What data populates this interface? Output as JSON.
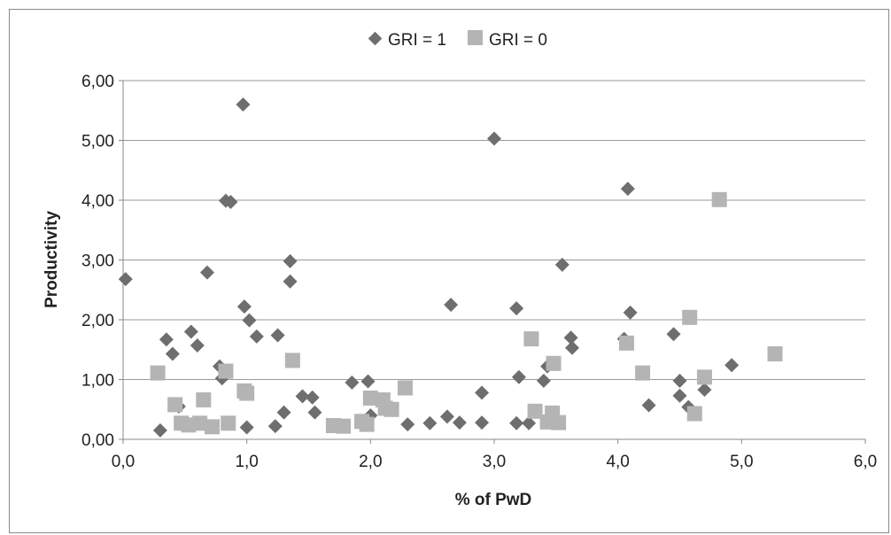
{
  "chart_data": {
    "type": "scatter",
    "title": "",
    "xlabel": "% of PwD",
    "ylabel": "Productivity",
    "xlim": [
      0,
      6
    ],
    "ylim": [
      0,
      6
    ],
    "x_ticks": [
      "0,0",
      "1,0",
      "2,0",
      "3,0",
      "4,0",
      "5,0",
      "6,0"
    ],
    "y_ticks": [
      "0,00",
      "1,00",
      "2,00",
      "3,00",
      "4,00",
      "5,00",
      "6,00"
    ],
    "grid": "horizontal",
    "legend_position": "top-center",
    "series": [
      {
        "name": "GRI = 1",
        "marker": "diamond",
        "color": "#6e6e6e",
        "points": [
          [
            0.02,
            2.68
          ],
          [
            0.3,
            0.15
          ],
          [
            0.35,
            1.67
          ],
          [
            0.4,
            1.43
          ],
          [
            0.45,
            0.55
          ],
          [
            0.55,
            1.8
          ],
          [
            0.6,
            1.57
          ],
          [
            0.68,
            2.79
          ],
          [
            0.78,
            1.22
          ],
          [
            0.8,
            1.02
          ],
          [
            0.83,
            3.99
          ],
          [
            0.87,
            3.97
          ],
          [
            0.97,
            5.6
          ],
          [
            0.98,
            2.22
          ],
          [
            1.02,
            1.99
          ],
          [
            1.0,
            0.2
          ],
          [
            1.08,
            1.72
          ],
          [
            1.23,
            0.22
          ],
          [
            1.25,
            1.74
          ],
          [
            1.3,
            0.45
          ],
          [
            1.35,
            2.98
          ],
          [
            1.35,
            2.64
          ],
          [
            1.45,
            0.72
          ],
          [
            1.53,
            0.7
          ],
          [
            1.55,
            0.45
          ],
          [
            1.85,
            0.95
          ],
          [
            1.98,
            0.97
          ],
          [
            2.0,
            0.4
          ],
          [
            2.1,
            0.65
          ],
          [
            2.3,
            0.25
          ],
          [
            2.48,
            0.27
          ],
          [
            2.62,
            0.38
          ],
          [
            2.65,
            2.25
          ],
          [
            2.72,
            0.28
          ],
          [
            2.9,
            0.78
          ],
          [
            2.9,
            0.28
          ],
          [
            3.0,
            5.03
          ],
          [
            3.18,
            2.19
          ],
          [
            3.2,
            1.04
          ],
          [
            3.18,
            0.27
          ],
          [
            3.28,
            0.27
          ],
          [
            3.4,
            0.98
          ],
          [
            3.43,
            1.22
          ],
          [
            3.55,
            2.92
          ],
          [
            3.62,
            1.7
          ],
          [
            3.63,
            1.53
          ],
          [
            4.05,
            1.68
          ],
          [
            4.08,
            4.19
          ],
          [
            4.1,
            2.12
          ],
          [
            4.25,
            0.57
          ],
          [
            4.45,
            1.76
          ],
          [
            4.5,
            0.98
          ],
          [
            4.5,
            0.73
          ],
          [
            4.57,
            0.54
          ],
          [
            4.7,
            0.83
          ],
          [
            4.92,
            1.24
          ]
        ]
      },
      {
        "name": "GRI = 0",
        "marker": "square",
        "color": "#b4b4b4",
        "points": [
          [
            0.28,
            1.11
          ],
          [
            0.42,
            0.58
          ],
          [
            0.47,
            0.27
          ],
          [
            0.53,
            0.24
          ],
          [
            0.62,
            0.27
          ],
          [
            0.65,
            0.66
          ],
          [
            0.72,
            0.21
          ],
          [
            0.83,
            1.14
          ],
          [
            0.85,
            0.27
          ],
          [
            0.98,
            0.81
          ],
          [
            1.0,
            0.77
          ],
          [
            1.37,
            1.32
          ],
          [
            1.7,
            0.23
          ],
          [
            1.78,
            0.22
          ],
          [
            1.93,
            0.3
          ],
          [
            1.97,
            0.25
          ],
          [
            2.0,
            0.69
          ],
          [
            2.1,
            0.66
          ],
          [
            2.12,
            0.52
          ],
          [
            2.17,
            0.5
          ],
          [
            2.28,
            0.86
          ],
          [
            3.3,
            1.68
          ],
          [
            3.33,
            0.47
          ],
          [
            3.43,
            0.29
          ],
          [
            3.47,
            0.44
          ],
          [
            3.48,
            1.27
          ],
          [
            3.52,
            0.28
          ],
          [
            4.07,
            1.61
          ],
          [
            4.2,
            1.11
          ],
          [
            4.58,
            2.04
          ],
          [
            4.62,
            0.43
          ],
          [
            4.7,
            1.04
          ],
          [
            4.82,
            4.01
          ],
          [
            5.27,
            1.43
          ]
        ]
      }
    ]
  }
}
